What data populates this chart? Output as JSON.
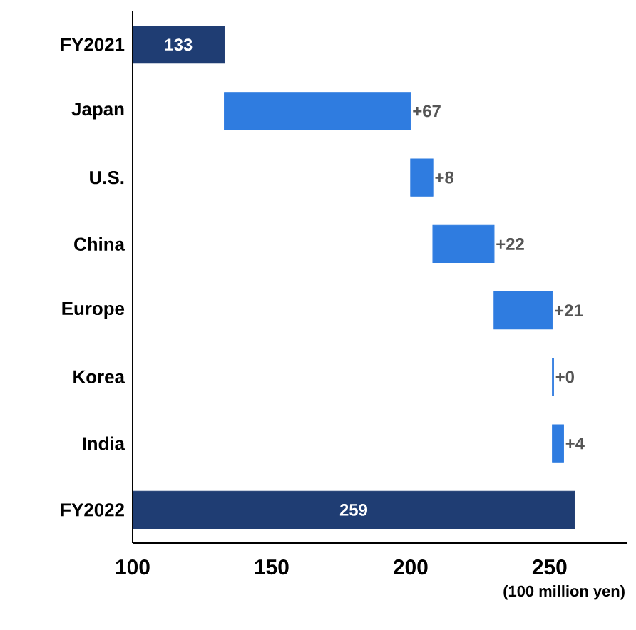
{
  "chart_data": {
    "type": "bar",
    "orientation": "horizontal",
    "xlabel": "(100 million yen)",
    "categories": [
      "FY2021",
      "Japan",
      "U.S.",
      "China",
      "Europe",
      "Korea",
      "India",
      "FY2022"
    ],
    "values": [
      133,
      67,
      8,
      22,
      21,
      0.4,
      4,
      259
    ],
    "base": [
      null,
      133,
      200,
      208,
      230,
      251,
      251,
      null
    ],
    "colors": [
      "#1f3d73",
      "#2f7ce0",
      "#2f7ce0",
      "#2f7ce0",
      "#2f7ce0",
      "#2f7ce0",
      "#2f7ce0",
      "#1f3d73"
    ],
    "value_labels": [
      "133",
      "+67",
      "+8",
      "+22",
      "+21",
      "+0",
      "+4",
      "259"
    ],
    "xlim": [
      100,
      278
    ],
    "xticks": [
      100,
      150,
      200,
      250
    ]
  }
}
